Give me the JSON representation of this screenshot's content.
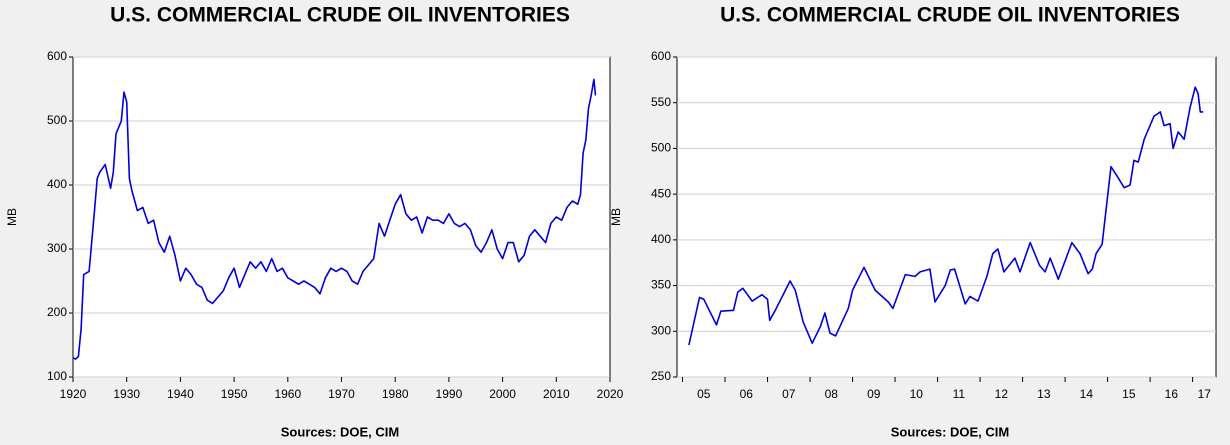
{
  "chart_data": [
    {
      "type": "line",
      "title": "U.S. COMMERCIAL CRUDE OIL INVENTORIES",
      "ylabel": "MB",
      "note": "Sources:  DOE, CIM",
      "color": "#0000dd",
      "grid": true,
      "xlim": [
        1920,
        2020
      ],
      "xticks": [
        1920,
        1930,
        1940,
        1950,
        1960,
        1970,
        1980,
        1990,
        2000,
        2010,
        2020
      ],
      "ylim": [
        100,
        600
      ],
      "yticks": [
        100,
        200,
        300,
        400,
        500,
        600
      ],
      "x": [
        1920,
        1920.5,
        1921,
        1921.5,
        1922,
        1923,
        1924,
        1924.5,
        1925,
        1926,
        1927,
        1927.5,
        1928,
        1929,
        1929.5,
        1930,
        1930.5,
        1931,
        1932,
        1933,
        1934,
        1935,
        1936,
        1937,
        1938,
        1939,
        1940,
        1941,
        1942,
        1943,
        1944,
        1945,
        1946,
        1947,
        1948,
        1949,
        1950,
        1951,
        1952,
        1953,
        1954,
        1955,
        1956,
        1957,
        1958,
        1959,
        1960,
        1961,
        1962,
        1963,
        1964,
        1965,
        1966,
        1967,
        1968,
        1969,
        1970,
        1971,
        1972,
        1973,
        1974,
        1975,
        1976,
        1977,
        1978,
        1979,
        1980,
        1981,
        1982,
        1983,
        1984,
        1985,
        1986,
        1987,
        1988,
        1989,
        1990,
        1991,
        1992,
        1993,
        1994,
        1995,
        1996,
        1997,
        1998,
        1999,
        2000,
        2001,
        2002,
        2003,
        2004,
        2005,
        2006,
        2007,
        2008,
        2009,
        2010,
        2011,
        2012,
        2013,
        2014,
        2014.5,
        2015,
        2015.5,
        2016,
        2016.5,
        2017,
        2017.3
      ],
      "values": [
        130,
        128,
        132,
        175,
        260,
        265,
        360,
        410,
        420,
        432,
        395,
        420,
        480,
        500,
        545,
        530,
        410,
        390,
        360,
        365,
        340,
        345,
        310,
        295,
        320,
        290,
        250,
        270,
        260,
        245,
        240,
        220,
        215,
        225,
        235,
        255,
        270,
        240,
        260,
        280,
        270,
        280,
        265,
        285,
        265,
        270,
        255,
        250,
        245,
        250,
        245,
        240,
        230,
        255,
        270,
        265,
        270,
        265,
        250,
        245,
        265,
        275,
        285,
        340,
        320,
        345,
        370,
        385,
        355,
        345,
        350,
        325,
        350,
        345,
        345,
        340,
        355,
        340,
        335,
        340,
        330,
        305,
        295,
        310,
        330,
        300,
        285,
        310,
        310,
        280,
        290,
        320,
        330,
        320,
        310,
        340,
        350,
        345,
        365,
        375,
        370,
        385,
        450,
        470,
        520,
        540,
        565,
        540
      ]
    },
    {
      "type": "line",
      "title": "U.S. COMMERCIAL CRUDE OIL INVENTORIES",
      "ylabel": "MB",
      "note": "Sources:  DOE, CIM",
      "color": "#0000dd",
      "grid": true,
      "xlim": [
        2004.87,
        2017.55
      ],
      "xticks": [
        {
          "value": 2005,
          "label": "05"
        },
        {
          "value": 2006,
          "label": "06"
        },
        {
          "value": 2007,
          "label": "07"
        },
        {
          "value": 2008,
          "label": "08"
        },
        {
          "value": 2009,
          "label": "09"
        },
        {
          "value": 2010,
          "label": "10"
        },
        {
          "value": 2011,
          "label": "11"
        },
        {
          "value": 2012,
          "label": "12"
        },
        {
          "value": 2013,
          "label": "13"
        },
        {
          "value": 2014,
          "label": "14"
        },
        {
          "value": 2015,
          "label": "15"
        },
        {
          "value": 2016,
          "label": "16"
        },
        {
          "value": 2017,
          "label": "17"
        }
      ],
      "ylim": [
        250,
        600
      ],
      "yticks": [
        250,
        300,
        350,
        400,
        450,
        500,
        550,
        600
      ],
      "x": [
        2005.15,
        2005.4,
        2005.5,
        2005.8,
        2005.9,
        2006.2,
        2006.3,
        2006.42,
        2006.64,
        2006.87,
        2007.0,
        2007.05,
        2007.17,
        2007.53,
        2007.65,
        2007.84,
        2008.05,
        2008.24,
        2008.35,
        2008.47,
        2008.6,
        2008.9,
        2009.0,
        2009.27,
        2009.53,
        2009.84,
        2009.95,
        2010.24,
        2010.47,
        2010.59,
        2010.82,
        2010.94,
        2011.18,
        2011.3,
        2011.4,
        2011.65,
        2011.76,
        2011.95,
        2012.16,
        2012.3,
        2012.42,
        2012.56,
        2012.82,
        2012.94,
        2013.18,
        2013.4,
        2013.53,
        2013.65,
        2013.84,
        2014.16,
        2014.35,
        2014.54,
        2014.64,
        2014.73,
        2014.87,
        2015.08,
        2015.22,
        2015.39,
        2015.53,
        2015.62,
        2015.72,
        2015.86,
        2016.09,
        2016.24,
        2016.33,
        2016.47,
        2016.54,
        2016.66,
        2016.8,
        2016.94,
        2017.06,
        2017.13,
        2017.18,
        2017.25
      ],
      "values": [
        285,
        337,
        335,
        307,
        322,
        323,
        343,
        347,
        333,
        340,
        335,
        312,
        322,
        355,
        345,
        310,
        287,
        305,
        320,
        298,
        295,
        325,
        345,
        370,
        345,
        332,
        325,
        362,
        360,
        365,
        368,
        332,
        350,
        367,
        368,
        330,
        338,
        333,
        360,
        385,
        390,
        365,
        380,
        365,
        397,
        372,
        365,
        380,
        357,
        397,
        385,
        363,
        368,
        385,
        395,
        480,
        470,
        457,
        460,
        487,
        485,
        510,
        535,
        540,
        525,
        527,
        500,
        518,
        510,
        545,
        567,
        560,
        540,
        540
      ]
    }
  ]
}
